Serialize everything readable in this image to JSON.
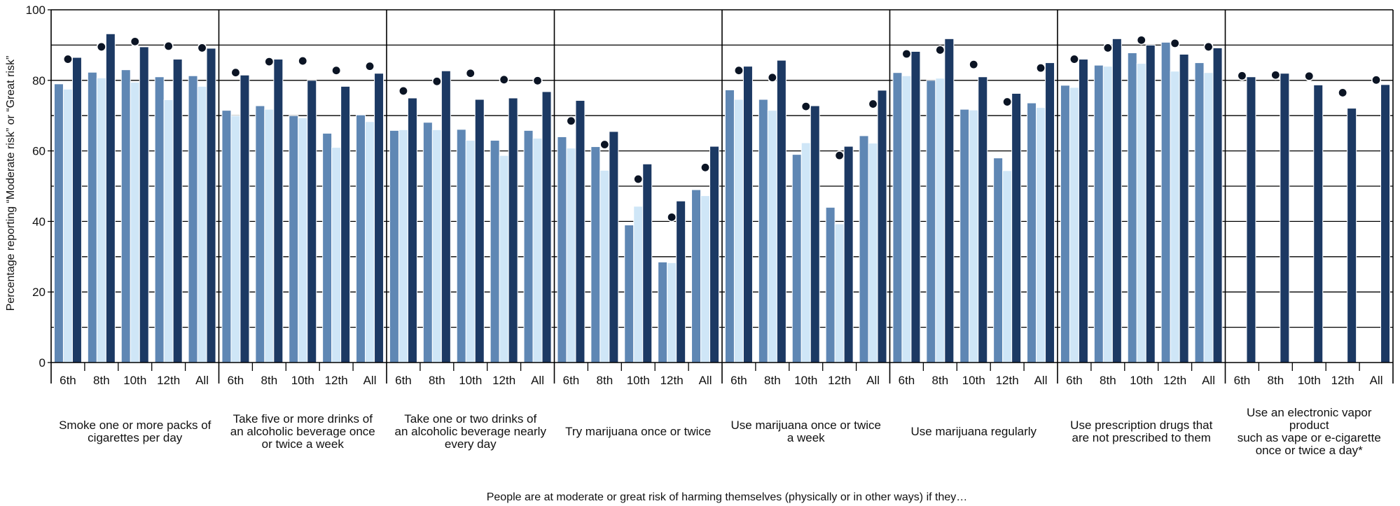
{
  "chart_data": {
    "type": "bar",
    "ylabel": "Percentage reporting “Moderate risk” or “Great risk”",
    "xlabel": "People are at moderate or great risk of harming themselves (physically or in other ways) if they…",
    "ylim": [
      0,
      100
    ],
    "yticks": [
      0,
      20,
      40,
      60,
      80,
      100
    ],
    "grid": true,
    "grades": [
      "6th",
      "8th",
      "10th",
      "12th",
      "All"
    ],
    "groups": [
      {
        "label_lines": [
          "Smoke one or more packs of",
          "cigarettes per day"
        ],
        "bars": [
          [
            79,
            77.5,
            86.5
          ],
          [
            82.3,
            80.7,
            93.2
          ],
          [
            83,
            79.5,
            89.5
          ],
          [
            81,
            74.5,
            86
          ],
          [
            81.3,
            78.3,
            89.1
          ]
        ],
        "dots": [
          86,
          89.5,
          91,
          89.7,
          89.2
        ]
      },
      {
        "label_lines": [
          "Take five or more drinks of",
          "an alcoholic beverage once",
          "or twice a week"
        ],
        "bars": [
          [
            71.5,
            70,
            81.5
          ],
          [
            72.8,
            71.8,
            86
          ],
          [
            70,
            69.4,
            80
          ],
          [
            65,
            61,
            78.3
          ],
          [
            70.2,
            68.3,
            82
          ]
        ],
        "dots": [
          82.2,
          85.3,
          85.5,
          82.8,
          84
        ]
      },
      {
        "label_lines": [
          "Take one or two drinks of",
          "an alcoholic beverage nearly",
          "every day"
        ],
        "bars": [
          [
            65.8,
            66,
            75
          ],
          [
            68.1,
            66,
            82.7
          ],
          [
            66.1,
            63,
            74.6
          ],
          [
            63,
            58.7,
            75
          ],
          [
            65.8,
            63.6,
            76.8
          ]
        ],
        "dots": [
          77,
          79.7,
          82,
          80.2,
          79.9
        ]
      },
      {
        "label_lines": [
          "Try marijuana once or twice"
        ],
        "bars": [
          [
            64,
            60.8,
            74.3
          ],
          [
            61.2,
            54.5,
            65.5
          ],
          [
            39,
            44.3,
            56.3
          ],
          [
            28.5,
            28.3,
            45.8
          ],
          [
            49,
            47.3,
            61.3
          ]
        ],
        "dots": [
          68.5,
          61.8,
          52,
          41.2,
          55.3
        ]
      },
      {
        "label_lines": [
          "Use marijuana once or twice",
          "a week"
        ],
        "bars": [
          [
            77.3,
            74.6,
            84
          ],
          [
            74.6,
            71.5,
            85.7
          ],
          [
            59,
            62.3,
            72.8
          ],
          [
            44,
            39.3,
            61.3
          ],
          [
            64.3,
            62.2,
            77.2
          ]
        ],
        "dots": [
          82.8,
          80.8,
          72.6,
          58.7,
          73.3
        ]
      },
      {
        "label_lines": [
          "Use marijuana regularly"
        ],
        "bars": [
          [
            82.2,
            81.3,
            88.2
          ],
          [
            80,
            80.6,
            91.8
          ],
          [
            71.8,
            71.6,
            81
          ],
          [
            58,
            54.4,
            76.3
          ],
          [
            73.6,
            72.3,
            85
          ]
        ],
        "dots": [
          87.5,
          88.6,
          84.5,
          73.9,
          83.5
        ]
      },
      {
        "label_lines": [
          "Use prescription drugs that",
          "are not prescribed to them"
        ],
        "bars": [
          [
            78.6,
            78,
            86
          ],
          [
            84.3,
            84,
            91.8
          ],
          [
            87.8,
            84.8,
            90
          ],
          [
            90.8,
            82.6,
            87.4
          ],
          [
            85,
            82.2,
            89.2
          ]
        ],
        "dots": [
          86,
          89.2,
          91.4,
          90.5,
          89.5
        ]
      },
      {
        "label_lines": [
          "Use an electronic vapor",
          "product",
          "such as vape or e-cigarette",
          "once or twice a day*"
        ],
        "bars": [
          [
            null,
            null,
            81
          ],
          [
            null,
            null,
            82
          ],
          [
            null,
            null,
            78.7
          ],
          [
            null,
            null,
            72.1
          ],
          [
            null,
            null,
            78.8
          ]
        ],
        "dots": [
          81.3,
          81.5,
          81.2,
          76.5,
          80.1
        ]
      }
    ],
    "colors": {
      "bar1": "#5f87b4",
      "bar2": "#cfe6f7",
      "bar3": "#1c3963",
      "dot": "#0b1424",
      "grid": "#000000"
    }
  }
}
